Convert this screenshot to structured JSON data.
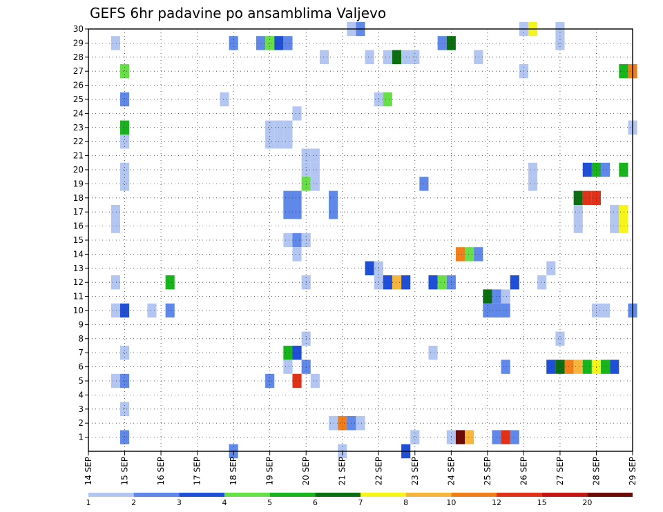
{
  "chart_data": {
    "type": "heatmap",
    "title": "GEFS 6hr padavine po ansamblima Valjevo",
    "xlabel": "",
    "ylabel": "",
    "x_start": "2018-09-14T00",
    "x_end": "2018-09-29T00",
    "x_step_hours": 6,
    "x_tick_labels": [
      "14 SEP",
      "15 SEP",
      "16 SEP",
      "17 SEP",
      "18 SEP",
      "19 SEP",
      "20 SEP",
      "21 SEP",
      "22 SEP",
      "23 SEP",
      "24 SEP",
      "25 SEP",
      "26 SEP",
      "27 SEP",
      "28 SEP",
      "29 SEP"
    ],
    "y_tick_labels": [
      "1",
      "2",
      "3",
      "4",
      "5",
      "6",
      "7",
      "8",
      "9",
      "10",
      "11",
      "12",
      "13",
      "14",
      "15",
      "16",
      "17",
      "18",
      "19",
      "20",
      "21",
      "22",
      "23",
      "24",
      "25",
      "26",
      "27",
      "28",
      "29",
      "30"
    ],
    "ylim": [
      0,
      30
    ],
    "grid": true,
    "legend": {
      "placement": "bottom",
      "labels": [
        "1",
        "2",
        "3",
        "4",
        "5",
        "6",
        "7",
        "8",
        "10",
        "12",
        "15",
        "20"
      ],
      "colors": [
        "#b3c6f2",
        "#5f88e8",
        "#1f4fd6",
        "#66e046",
        "#19b41d",
        "#0b6e10",
        "#f5f51c",
        "#f6b53c",
        "#f07e1a",
        "#e03218",
        "#c21712",
        "#6b0a07"
      ]
    },
    "cells": [
      {
        "member": 30,
        "time": "2018-09-21T06",
        "value": 1
      },
      {
        "member": 30,
        "time": "2018-09-21T12",
        "value": 2
      },
      {
        "member": 30,
        "time": "2018-09-26T00",
        "value": 1
      },
      {
        "member": 30,
        "time": "2018-09-26T06",
        "value": 7
      },
      {
        "member": 30,
        "time": "2018-09-27T00",
        "value": 1
      },
      {
        "member": 29,
        "time": "2018-09-14T18",
        "value": 1
      },
      {
        "member": 29,
        "time": "2018-09-18T00",
        "value": 2
      },
      {
        "member": 29,
        "time": "2018-09-18T18",
        "value": 2
      },
      {
        "member": 29,
        "time": "2018-09-19T00",
        "value": 4
      },
      {
        "member": 29,
        "time": "2018-09-19T06",
        "value": 3
      },
      {
        "member": 29,
        "time": "2018-09-19T12",
        "value": 2
      },
      {
        "member": 29,
        "time": "2018-09-23T18",
        "value": 2
      },
      {
        "member": 29,
        "time": "2018-09-24T00",
        "value": 6
      },
      {
        "member": 29,
        "time": "2018-09-27T00",
        "value": 1
      },
      {
        "member": 28,
        "time": "2018-09-20T12",
        "value": 1
      },
      {
        "member": 28,
        "time": "2018-09-21T18",
        "value": 1
      },
      {
        "member": 28,
        "time": "2018-09-22T06",
        "value": 1
      },
      {
        "member": 28,
        "time": "2018-09-22T12",
        "value": 6
      },
      {
        "member": 28,
        "time": "2018-09-22T18",
        "value": 1
      },
      {
        "member": 28,
        "time": "2018-09-23T00",
        "value": 1
      },
      {
        "member": 28,
        "time": "2018-09-24T18",
        "value": 1
      },
      {
        "member": 27,
        "time": "2018-09-15T00",
        "value": 4
      },
      {
        "member": 27,
        "time": "2018-09-26T00",
        "value": 1
      },
      {
        "member": 27,
        "time": "2018-09-28T18",
        "value": 5
      },
      {
        "member": 27,
        "time": "2018-09-29T00",
        "value": 10
      },
      {
        "member": 25,
        "time": "2018-09-15T00",
        "value": 2
      },
      {
        "member": 25,
        "time": "2018-09-17T18",
        "value": 1
      },
      {
        "member": 25,
        "time": "2018-09-22T00",
        "value": 1
      },
      {
        "member": 25,
        "time": "2018-09-22T06",
        "value": 4
      },
      {
        "member": 24,
        "time": "2018-09-19T18",
        "value": 1
      },
      {
        "member": 23,
        "time": "2018-09-15T00",
        "value": 5
      },
      {
        "member": 23,
        "time": "2018-09-19T00",
        "value": 1
      },
      {
        "member": 23,
        "time": "2018-09-19T06",
        "value": 1
      },
      {
        "member": 23,
        "time": "2018-09-19T12",
        "value": 1
      },
      {
        "member": 23,
        "time": "2018-09-29T00",
        "value": 1
      },
      {
        "member": 22,
        "time": "2018-09-15T00",
        "value": 1
      },
      {
        "member": 22,
        "time": "2018-09-19T00",
        "value": 1
      },
      {
        "member": 22,
        "time": "2018-09-19T06",
        "value": 1
      },
      {
        "member": 22,
        "time": "2018-09-19T12",
        "value": 1
      },
      {
        "member": 21,
        "time": "2018-09-20T00",
        "value": 1
      },
      {
        "member": 21,
        "time": "2018-09-20T06",
        "value": 1
      },
      {
        "member": 20,
        "time": "2018-09-15T00",
        "value": 1
      },
      {
        "member": 20,
        "time": "2018-09-20T00",
        "value": 1
      },
      {
        "member": 20,
        "time": "2018-09-20T06",
        "value": 1
      },
      {
        "member": 20,
        "time": "2018-09-26T06",
        "value": 1
      },
      {
        "member": 20,
        "time": "2018-09-27T18",
        "value": 3
      },
      {
        "member": 20,
        "time": "2018-09-28T00",
        "value": 5
      },
      {
        "member": 20,
        "time": "2018-09-28T06",
        "value": 2
      },
      {
        "member": 20,
        "time": "2018-09-28T18",
        "value": 5
      },
      {
        "member": 19,
        "time": "2018-09-15T00",
        "value": 1
      },
      {
        "member": 19,
        "time": "2018-09-20T00",
        "value": 4
      },
      {
        "member": 19,
        "time": "2018-09-20T06",
        "value": 1
      },
      {
        "member": 19,
        "time": "2018-09-23T06",
        "value": 2
      },
      {
        "member": 19,
        "time": "2018-09-26T06",
        "value": 1
      },
      {
        "member": 18,
        "time": "2018-09-19T12",
        "value": 2
      },
      {
        "member": 18,
        "time": "2018-09-19T18",
        "value": 2
      },
      {
        "member": 18,
        "time": "2018-09-20T18",
        "value": 2
      },
      {
        "member": 18,
        "time": "2018-09-27T12",
        "value": 6
      },
      {
        "member": 18,
        "time": "2018-09-27T18",
        "value": 12
      },
      {
        "member": 18,
        "time": "2018-09-28T00",
        "value": 12
      },
      {
        "member": 17,
        "time": "2018-09-14T18",
        "value": 1
      },
      {
        "member": 17,
        "time": "2018-09-19T12",
        "value": 2
      },
      {
        "member": 17,
        "time": "2018-09-19T18",
        "value": 2
      },
      {
        "member": 17,
        "time": "2018-09-20T18",
        "value": 2
      },
      {
        "member": 17,
        "time": "2018-09-27T12",
        "value": 1
      },
      {
        "member": 17,
        "time": "2018-09-28T12",
        "value": 1
      },
      {
        "member": 17,
        "time": "2018-09-28T18",
        "value": 7
      },
      {
        "member": 16,
        "time": "2018-09-14T18",
        "value": 1
      },
      {
        "member": 16,
        "time": "2018-09-27T12",
        "value": 1
      },
      {
        "member": 16,
        "time": "2018-09-28T12",
        "value": 1
      },
      {
        "member": 16,
        "time": "2018-09-28T18",
        "value": 7
      },
      {
        "member": 15,
        "time": "2018-09-19T12",
        "value": 1
      },
      {
        "member": 15,
        "time": "2018-09-19T18",
        "value": 2
      },
      {
        "member": 15,
        "time": "2018-09-20T00",
        "value": 1
      },
      {
        "member": 14,
        "time": "2018-09-19T18",
        "value": 1
      },
      {
        "member": 14,
        "time": "2018-09-24T06",
        "value": 10
      },
      {
        "member": 14,
        "time": "2018-09-24T12",
        "value": 4
      },
      {
        "member": 14,
        "time": "2018-09-24T18",
        "value": 2
      },
      {
        "member": 13,
        "time": "2018-09-21T18",
        "value": 3
      },
      {
        "member": 13,
        "time": "2018-09-22T00",
        "value": 1
      },
      {
        "member": 13,
        "time": "2018-09-26T18",
        "value": 1
      },
      {
        "member": 12,
        "time": "2018-09-14T18",
        "value": 1
      },
      {
        "member": 12,
        "time": "2018-09-16T06",
        "value": 5
      },
      {
        "member": 12,
        "time": "2018-09-20T00",
        "value": 1
      },
      {
        "member": 12,
        "time": "2018-09-22T00",
        "value": 1
      },
      {
        "member": 12,
        "time": "2018-09-22T06",
        "value": 3
      },
      {
        "member": 12,
        "time": "2018-09-22T12",
        "value": 8
      },
      {
        "member": 12,
        "time": "2018-09-22T18",
        "value": 3
      },
      {
        "member": 12,
        "time": "2018-09-23T12",
        "value": 3
      },
      {
        "member": 12,
        "time": "2018-09-23T18",
        "value": 4
      },
      {
        "member": 12,
        "time": "2018-09-24T00",
        "value": 2
      },
      {
        "member": 12,
        "time": "2018-09-25T18",
        "value": 3
      },
      {
        "member": 12,
        "time": "2018-09-26T12",
        "value": 1
      },
      {
        "member": 11,
        "time": "2018-09-25T00",
        "value": 6
      },
      {
        "member": 11,
        "time": "2018-09-25T06",
        "value": 2
      },
      {
        "member": 11,
        "time": "2018-09-25T12",
        "value": 1
      },
      {
        "member": 10,
        "time": "2018-09-14T18",
        "value": 1
      },
      {
        "member": 10,
        "time": "2018-09-15T00",
        "value": 3
      },
      {
        "member": 10,
        "time": "2018-09-15T18",
        "value": 1
      },
      {
        "member": 10,
        "time": "2018-09-16T06",
        "value": 2
      },
      {
        "member": 10,
        "time": "2018-09-25T00",
        "value": 2
      },
      {
        "member": 10,
        "time": "2018-09-25T06",
        "value": 2
      },
      {
        "member": 10,
        "time": "2018-09-25T12",
        "value": 2
      },
      {
        "member": 10,
        "time": "2018-09-28T00",
        "value": 1
      },
      {
        "member": 10,
        "time": "2018-09-28T06",
        "value": 1
      },
      {
        "member": 10,
        "time": "2018-09-29T00",
        "value": 2
      },
      {
        "member": 8,
        "time": "2018-09-20T00",
        "value": 1
      },
      {
        "member": 8,
        "time": "2018-09-27T00",
        "value": 1
      },
      {
        "member": 7,
        "time": "2018-09-15T00",
        "value": 1
      },
      {
        "member": 7,
        "time": "2018-09-19T12",
        "value": 5
      },
      {
        "member": 7,
        "time": "2018-09-19T18",
        "value": 3
      },
      {
        "member": 7,
        "time": "2018-09-23T12",
        "value": 1
      },
      {
        "member": 6,
        "time": "2018-09-19T12",
        "value": 1
      },
      {
        "member": 6,
        "time": "2018-09-20T00",
        "value": 2
      },
      {
        "member": 6,
        "time": "2018-09-25T12",
        "value": 2
      },
      {
        "member": 6,
        "time": "2018-09-26T18",
        "value": 3
      },
      {
        "member": 6,
        "time": "2018-09-27T00",
        "value": 6
      },
      {
        "member": 6,
        "time": "2018-09-27T06",
        "value": 10
      },
      {
        "member": 6,
        "time": "2018-09-27T12",
        "value": 8
      },
      {
        "member": 6,
        "time": "2018-09-27T18",
        "value": 5
      },
      {
        "member": 6,
        "time": "2018-09-28T00",
        "value": 7
      },
      {
        "member": 6,
        "time": "2018-09-28T06",
        "value": 5
      },
      {
        "member": 6,
        "time": "2018-09-28T12",
        "value": 3
      },
      {
        "member": 5,
        "time": "2018-09-14T18",
        "value": 1
      },
      {
        "member": 5,
        "time": "2018-09-15T00",
        "value": 2
      },
      {
        "member": 5,
        "time": "2018-09-19T00",
        "value": 2
      },
      {
        "member": 5,
        "time": "2018-09-19T18",
        "value": 12
      },
      {
        "member": 5,
        "time": "2018-09-20T06",
        "value": 1
      },
      {
        "member": 3,
        "time": "2018-09-15T00",
        "value": 1
      },
      {
        "member": 2,
        "time": "2018-09-20T18",
        "value": 1
      },
      {
        "member": 2,
        "time": "2018-09-21T00",
        "value": 10
      },
      {
        "member": 2,
        "time": "2018-09-21T06",
        "value": 2
      },
      {
        "member": 2,
        "time": "2018-09-21T12",
        "value": 1
      },
      {
        "member": 1,
        "time": "2018-09-15T00",
        "value": 2
      },
      {
        "member": 1,
        "time": "2018-09-23T00",
        "value": 1
      },
      {
        "member": 1,
        "time": "2018-09-24T00",
        "value": 1
      },
      {
        "member": 1,
        "time": "2018-09-24T06",
        "value": 20
      },
      {
        "member": 1,
        "time": "2018-09-24T12",
        "value": 8
      },
      {
        "member": 1,
        "time": "2018-09-25T06",
        "value": 2
      },
      {
        "member": 1,
        "time": "2018-09-25T12",
        "value": 12
      },
      {
        "member": 1,
        "time": "2018-09-25T18",
        "value": 2
      },
      {
        "member": 0,
        "time": "2018-09-18T00",
        "value": 2
      },
      {
        "member": 0,
        "time": "2018-09-21T00",
        "value": 1
      },
      {
        "member": 0,
        "time": "2018-09-22T18",
        "value": 3
      }
    ]
  }
}
